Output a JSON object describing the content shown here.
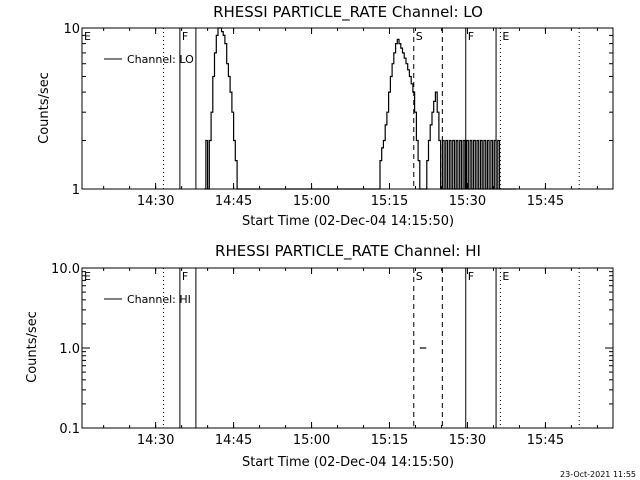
{
  "chart_data": [
    {
      "type": "line",
      "title": "RHESSI PARTICLE_RATE Channel: LO",
      "xlabel": "Start Time (02-Dec-04 14:15:50)",
      "ylabel": "Counts/sec",
      "y_scale": "log",
      "ylim": [
        1,
        10
      ],
      "xlim": [
        "14:15:50",
        "15:58:00"
      ],
      "x_ticks": [
        "14:30",
        "14:45",
        "15:00",
        "15:15",
        "15:30",
        "15:45"
      ],
      "y_ticks": [
        "1",
        "10"
      ],
      "legend": {
        "placement": "top-left",
        "entries": [
          "Channel: LO"
        ]
      },
      "series": [
        {
          "name": "Channel: LO",
          "x": [
            "14:39:20",
            "14:39:40",
            "14:40:00",
            "14:40:20",
            "14:40:40",
            "14:41:00",
            "14:41:20",
            "14:41:40",
            "14:42:00",
            "14:42:20",
            "14:42:40",
            "14:43:00",
            "14:43:20",
            "14:43:40",
            "14:44:00",
            "14:44:20",
            "14:44:40",
            "14:45:00",
            "14:45:20",
            "14:45:40",
            "14:46:00",
            "14:46:20",
            "14:46:40",
            "14:47:00",
            "14:47:20",
            "14:47:40",
            "15:12:50",
            "15:13:10",
            "15:13:30",
            "15:13:50",
            "15:14:10",
            "15:14:30",
            "15:14:50",
            "15:15:10",
            "15:15:30",
            "15:15:50",
            "15:16:10",
            "15:16:30",
            "15:16:50",
            "15:17:10",
            "15:17:30",
            "15:17:50",
            "15:18:10",
            "15:18:30",
            "15:18:50",
            "15:19:10",
            "15:19:30",
            "15:19:50",
            "15:20:10",
            "15:20:30",
            "15:20:50",
            "15:21:10",
            "15:21:30",
            "15:21:50",
            "15:22:10",
            "15:22:30",
            "15:22:50",
            "15:23:10",
            "15:23:30",
            "15:23:50",
            "15:24:10",
            "15:24:30",
            "15:24:50",
            "15:25:10",
            "15:25:30",
            "15:25:50",
            "15:26:10",
            "15:26:30",
            "15:26:50",
            "15:27:10",
            "15:27:30",
            "15:27:50",
            "15:28:10",
            "15:28:30",
            "15:28:50",
            "15:29:10",
            "15:29:30",
            "15:29:50",
            "15:30:10",
            "15:30:30",
            "15:30:50",
            "15:31:10",
            "15:31:30",
            "15:31:50",
            "15:32:10",
            "15:32:30",
            "15:32:50",
            "15:33:10",
            "15:33:30",
            "15:33:50",
            "15:34:10",
            "15:34:30",
            "15:34:50",
            "15:35:10",
            "15:35:30",
            "15:35:50",
            "15:36:10",
            "15:36:30",
            "15:36:50",
            "15:37:10",
            "15:37:30",
            "15:37:50",
            "15:38:10",
            "15:38:30",
            "15:38:50"
          ],
          "y": [
            1,
            2,
            1,
            2,
            3,
            5,
            7,
            9,
            10,
            10,
            9.5,
            9,
            8,
            6,
            5,
            4,
            3,
            2,
            1.5,
            1,
            1,
            1,
            1,
            1,
            1,
            1,
            1,
            1.5,
            1.8,
            2,
            2.5,
            3,
            4,
            5,
            6,
            7,
            8,
            8.5,
            8,
            7.5,
            7,
            6.5,
            6,
            5.5,
            5,
            4.5,
            4,
            3,
            2,
            1.5,
            1,
            1,
            1,
            1,
            1.5,
            2,
            2.5,
            3,
            3.5,
            4,
            3,
            2,
            1,
            2,
            1,
            2,
            1,
            2,
            1,
            2,
            1,
            2,
            1,
            2,
            1,
            2,
            1,
            2,
            1,
            2,
            1,
            2,
            1,
            2,
            1,
            2,
            1,
            2,
            1,
            2,
            1,
            2,
            1,
            2,
            1,
            2,
            1,
            1,
            1,
            1,
            1,
            1,
            1,
            1,
            1
          ]
        }
      ],
      "markers": [
        {
          "label": "E",
          "time": "14:15:50",
          "style": "dotted"
        },
        {
          "label": "",
          "time": "14:31:30",
          "style": "dotted"
        },
        {
          "label": "F",
          "time": "14:34:40",
          "style": "solid"
        },
        {
          "label": "",
          "time": "14:37:45",
          "style": "solid"
        },
        {
          "label": "S",
          "time": "15:19:40",
          "style": "dashed"
        },
        {
          "label": "",
          "time": "15:25:10",
          "style": "dashed"
        },
        {
          "label": "F",
          "time": "15:29:40",
          "style": "solid"
        },
        {
          "label": "",
          "time": "15:35:30",
          "style": "solid"
        },
        {
          "label": "E",
          "time": "15:36:20",
          "style": "dotted"
        },
        {
          "label": "",
          "time": "15:51:30",
          "style": "dotted"
        }
      ]
    },
    {
      "type": "line",
      "title": "RHESSI PARTICLE_RATE Channel: HI",
      "xlabel": "Start Time (02-Dec-04 14:15:50)",
      "ylabel": "Counts/sec",
      "y_scale": "log",
      "ylim": [
        0.1,
        10
      ],
      "xlim": [
        "14:15:50",
        "15:58:00"
      ],
      "x_ticks": [
        "14:30",
        "14:45",
        "15:00",
        "15:15",
        "15:30",
        "15:45"
      ],
      "y_ticks": [
        "0.1",
        "1.0",
        "10.0"
      ],
      "legend": {
        "placement": "top-left",
        "entries": [
          "Channel: HI"
        ]
      },
      "series": [
        {
          "name": "Channel: HI",
          "x": [
            "15:20:50",
            "15:21:30"
          ],
          "y": [
            1,
            1
          ]
        }
      ],
      "markers": [
        {
          "label": "E",
          "time": "14:15:50",
          "style": "dotted"
        },
        {
          "label": "",
          "time": "14:31:30",
          "style": "dotted"
        },
        {
          "label": "F",
          "time": "14:34:40",
          "style": "solid"
        },
        {
          "label": "",
          "time": "14:37:45",
          "style": "solid"
        },
        {
          "label": "S",
          "time": "15:19:40",
          "style": "dashed"
        },
        {
          "label": "",
          "time": "15:25:10",
          "style": "dashed"
        },
        {
          "label": "F",
          "time": "15:29:40",
          "style": "solid"
        },
        {
          "label": "",
          "time": "15:35:30",
          "style": "solid"
        },
        {
          "label": "E",
          "time": "15:36:20",
          "style": "dotted"
        },
        {
          "label": "",
          "time": "15:51:30",
          "style": "dotted"
        }
      ]
    }
  ],
  "footer": {
    "timestamp": "23-Oct-2021 11:55"
  },
  "colors": {
    "background": "#ffffff",
    "foreground": "#000000"
  }
}
